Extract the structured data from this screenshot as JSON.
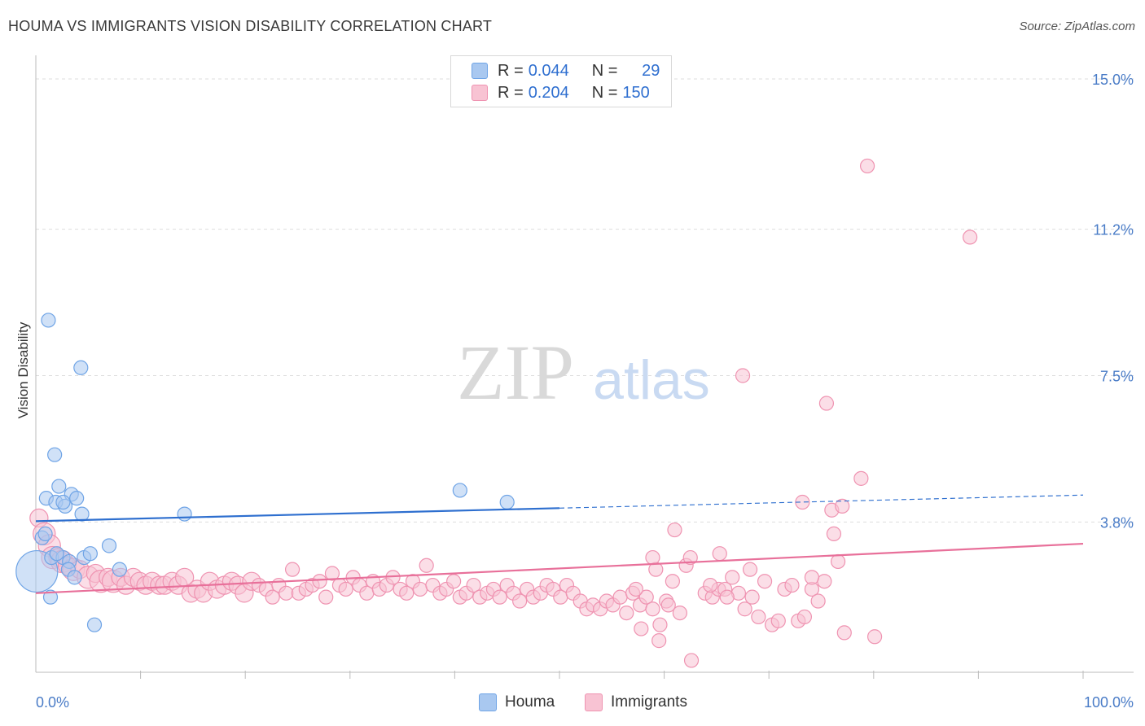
{
  "header": {
    "title": "HOUMA VS IMMIGRANTS VISION DISABILITY CORRELATION CHART",
    "source": "Source: ZipAtlas.com"
  },
  "legend": {
    "rows": [
      {
        "r_label": "R =",
        "r_value": "0.044",
        "n_label": "N =",
        "n_value": "29",
        "color": "#6fa4e6"
      },
      {
        "r_label": "R =",
        "r_value": "0.204",
        "n_label": "N =",
        "n_value": "150",
        "color": "#f2a3bd"
      }
    ]
  },
  "bottom_legend": {
    "houma": "Houma",
    "immigrants": "Immigrants"
  },
  "watermark": {
    "zip": "ZIP",
    "atlas": "atlas"
  },
  "colors": {
    "houma_fill": "#a9c8f0",
    "houma_stroke": "#6fa4e6",
    "houma_line": "#2e6fcf",
    "immigrants_fill": "#f8c3d3",
    "immigrants_stroke": "#ef93b1",
    "immigrants_line": "#e8709a",
    "tick_text": "#4a7cc7",
    "grid": "#dddddd"
  },
  "chart_data": {
    "type": "scatter",
    "title": "HOUMA VS IMMIGRANTS VISION DISABILITY CORRELATION CHART",
    "xlabel": "",
    "ylabel": "Vision Disability",
    "xlim": [
      0,
      100
    ],
    "ylim": [
      0,
      15
    ],
    "x_tick_labels": [
      "0.0%",
      "100.0%"
    ],
    "y_ticks": [
      3.8,
      7.5,
      11.2,
      15.0
    ],
    "y_tick_labels": [
      "3.8%",
      "7.5%",
      "11.2%",
      "15.0%"
    ],
    "grid": true,
    "legend_position": "top-center",
    "series": [
      {
        "name": "Houma",
        "points": [
          [
            0.1,
            2.55,
            3
          ],
          [
            0.6,
            3.4,
            1
          ],
          [
            1.2,
            8.9,
            1
          ],
          [
            1.8,
            5.5,
            1
          ],
          [
            2.2,
            4.7,
            1
          ],
          [
            1.0,
            4.4,
            1
          ],
          [
            1.9,
            4.3,
            1
          ],
          [
            2.8,
            4.2,
            1
          ],
          [
            3.4,
            4.5,
            1
          ],
          [
            3.9,
            4.4,
            1
          ],
          [
            4.4,
            4.0,
            1
          ],
          [
            2.6,
            4.3,
            1
          ],
          [
            4.3,
            7.7,
            1
          ],
          [
            1.5,
            2.9,
            1
          ],
          [
            2.6,
            2.9,
            1
          ],
          [
            3.2,
            2.8,
            1
          ],
          [
            3.1,
            2.6,
            1
          ],
          [
            3.7,
            2.4,
            1
          ],
          [
            4.6,
            2.9,
            1
          ],
          [
            5.2,
            3.0,
            1
          ],
          [
            7.0,
            3.2,
            1
          ],
          [
            8.0,
            2.6,
            1
          ],
          [
            1.4,
            1.9,
            1
          ],
          [
            5.6,
            1.2,
            1
          ],
          [
            14.2,
            4.0,
            1
          ],
          [
            40.5,
            4.6,
            1
          ],
          [
            45.0,
            4.3,
            1
          ],
          [
            0.9,
            3.5,
            1
          ],
          [
            2.0,
            3.0,
            1
          ]
        ],
        "trend": {
          "x": [
            0,
            50
          ],
          "y": [
            3.82,
            4.15
          ],
          "dashed_extension": {
            "x": [
              50,
              100
            ],
            "y": [
              4.15,
              4.48
            ]
          }
        }
      },
      {
        "name": "Immigrants",
        "points": [
          [
            0.3,
            3.9,
            1.3
          ],
          [
            0.8,
            3.5,
            1.6
          ],
          [
            1.3,
            3.2,
            1.6
          ],
          [
            1.6,
            2.9,
            1.6
          ],
          [
            2.1,
            2.9,
            1.3
          ],
          [
            2.5,
            2.8,
            1.6
          ],
          [
            3.0,
            2.7,
            1.3
          ],
          [
            3.6,
            2.6,
            1.6
          ],
          [
            4.2,
            2.6,
            1.3
          ],
          [
            5.0,
            2.4,
            1.6
          ],
          [
            5.7,
            2.5,
            1.3
          ],
          [
            6.2,
            2.3,
            1.6
          ],
          [
            6.9,
            2.4,
            1.3
          ],
          [
            7.4,
            2.3,
            1.6
          ],
          [
            8.1,
            2.4,
            1.3
          ],
          [
            8.6,
            2.2,
            1.3
          ],
          [
            9.3,
            2.4,
            1.3
          ],
          [
            9.9,
            2.3,
            1.3
          ],
          [
            10.5,
            2.2,
            1.3
          ],
          [
            11.1,
            2.3,
            1.3
          ],
          [
            11.8,
            2.2,
            1.3
          ],
          [
            12.3,
            2.2,
            1.3
          ],
          [
            13.0,
            2.3,
            1.3
          ],
          [
            13.6,
            2.2,
            1.3
          ],
          [
            14.2,
            2.4,
            1.3
          ],
          [
            14.8,
            2.0,
            1.3
          ],
          [
            15.4,
            2.1,
            1.3
          ],
          [
            16.0,
            2.0,
            1.3
          ],
          [
            16.6,
            2.3,
            1.3
          ],
          [
            17.3,
            2.1,
            1.3
          ],
          [
            18.0,
            2.2,
            1.3
          ],
          [
            18.7,
            2.3,
            1.3
          ],
          [
            19.3,
            2.2,
            1.3
          ],
          [
            19.9,
            2.0,
            1.3
          ],
          [
            20.6,
            2.3,
            1.3
          ],
          [
            21.3,
            2.2,
            1.0
          ],
          [
            22.0,
            2.1,
            1.0
          ],
          [
            22.6,
            1.9,
            1.0
          ],
          [
            23.2,
            2.2,
            1.0
          ],
          [
            23.9,
            2.0,
            1.0
          ],
          [
            24.5,
            2.6,
            1.0
          ],
          [
            25.1,
            2.0,
            1.0
          ],
          [
            25.8,
            2.1,
            1.0
          ],
          [
            26.4,
            2.2,
            1.0
          ],
          [
            27.1,
            2.3,
            1.0
          ],
          [
            27.7,
            1.9,
            1.0
          ],
          [
            28.3,
            2.5,
            1.0
          ],
          [
            29.0,
            2.2,
            1.0
          ],
          [
            29.6,
            2.1,
            1.0
          ],
          [
            30.3,
            2.4,
            1.0
          ],
          [
            30.9,
            2.2,
            1.0
          ],
          [
            31.6,
            2.0,
            1.0
          ],
          [
            32.2,
            2.3,
            1.0
          ],
          [
            32.8,
            2.1,
            1.0
          ],
          [
            33.5,
            2.2,
            1.0
          ],
          [
            34.1,
            2.4,
            1.0
          ],
          [
            34.8,
            2.1,
            1.0
          ],
          [
            35.4,
            2.0,
            1.0
          ],
          [
            36.0,
            2.3,
            1.0
          ],
          [
            36.7,
            2.1,
            1.0
          ],
          [
            37.3,
            2.7,
            1.0
          ],
          [
            37.9,
            2.2,
            1.0
          ],
          [
            38.6,
            2.0,
            1.0
          ],
          [
            39.2,
            2.1,
            1.0
          ],
          [
            39.9,
            2.3,
            1.0
          ],
          [
            40.5,
            1.9,
            1.0
          ],
          [
            41.1,
            2.0,
            1.0
          ],
          [
            41.8,
            2.2,
            1.0
          ],
          [
            42.4,
            1.9,
            1.0
          ],
          [
            43.1,
            2.0,
            1.0
          ],
          [
            43.7,
            2.1,
            1.0
          ],
          [
            44.3,
            1.9,
            1.0
          ],
          [
            45.0,
            2.2,
            1.0
          ],
          [
            45.6,
            2.0,
            1.0
          ],
          [
            46.2,
            1.8,
            1.0
          ],
          [
            46.9,
            2.1,
            1.0
          ],
          [
            47.5,
            1.9,
            1.0
          ],
          [
            48.2,
            2.0,
            1.0
          ],
          [
            48.8,
            2.2,
            1.0
          ],
          [
            49.4,
            2.1,
            1.0
          ],
          [
            50.1,
            1.9,
            1.0
          ],
          [
            50.7,
            2.2,
            1.0
          ],
          [
            51.3,
            2.0,
            1.0
          ],
          [
            52.0,
            1.8,
            1.0
          ],
          [
            52.6,
            1.6,
            1.0
          ],
          [
            53.2,
            1.7,
            1.0
          ],
          [
            53.9,
            1.6,
            1.0
          ],
          [
            54.5,
            1.8,
            1.0
          ],
          [
            55.1,
            1.7,
            1.0
          ],
          [
            55.8,
            1.9,
            1.0
          ],
          [
            56.4,
            1.5,
            1.0
          ],
          [
            57.0,
            2.0,
            1.0
          ],
          [
            57.7,
            1.7,
            1.0
          ],
          [
            58.3,
            1.9,
            1.0
          ],
          [
            58.9,
            1.6,
            1.0
          ],
          [
            59.6,
            1.2,
            1.0
          ],
          [
            60.2,
            1.8,
            1.0
          ],
          [
            60.8,
            2.3,
            1.0
          ],
          [
            61.5,
            1.5,
            1.0
          ],
          [
            62.1,
            2.7,
            1.0
          ],
          [
            57.8,
            1.1,
            1.0
          ],
          [
            59.5,
            0.8,
            1.0
          ],
          [
            62.6,
            0.3,
            1.0
          ],
          [
            63.9,
            2.0,
            1.0
          ],
          [
            64.6,
            1.9,
            1.0
          ],
          [
            65.2,
            2.1,
            1.0
          ],
          [
            65.8,
            2.1,
            1.0
          ],
          [
            66.5,
            2.4,
            1.0
          ],
          [
            67.1,
            2.0,
            1.0
          ],
          [
            67.7,
            1.6,
            1.0
          ],
          [
            68.4,
            1.9,
            1.0
          ],
          [
            69.0,
            1.4,
            1.0
          ],
          [
            69.6,
            2.3,
            1.0
          ],
          [
            70.3,
            1.2,
            1.0
          ],
          [
            70.9,
            1.3,
            1.0
          ],
          [
            71.5,
            2.1,
            1.0
          ],
          [
            72.2,
            2.2,
            1.0
          ],
          [
            72.8,
            1.3,
            1.0
          ],
          [
            73.4,
            1.4,
            1.0
          ],
          [
            74.1,
            2.1,
            1.0
          ],
          [
            74.7,
            1.8,
            1.0
          ],
          [
            75.3,
            2.3,
            1.0
          ],
          [
            76.0,
            4.1,
            1.0
          ],
          [
            76.6,
            2.8,
            1.0
          ],
          [
            77.2,
            1.0,
            1.0
          ],
          [
            73.2,
            4.3,
            1.0
          ],
          [
            74.1,
            2.4,
            1.0
          ],
          [
            76.2,
            3.5,
            1.0
          ],
          [
            77.0,
            4.2,
            1.0
          ],
          [
            75.5,
            6.8,
            1.0
          ],
          [
            78.8,
            4.9,
            1.0
          ],
          [
            79.4,
            12.8,
            1.0
          ],
          [
            89.2,
            11.0,
            1.0
          ],
          [
            80.1,
            0.9,
            1.0
          ],
          [
            65.3,
            3.0,
            1.0
          ],
          [
            59.2,
            2.6,
            1.0
          ],
          [
            61.0,
            3.6,
            1.0
          ],
          [
            62.5,
            2.9,
            1.0
          ],
          [
            64.4,
            2.2,
            1.0
          ],
          [
            66.0,
            1.9,
            1.0
          ],
          [
            67.5,
            7.5,
            1.0
          ],
          [
            68.2,
            2.6,
            1.0
          ],
          [
            57.3,
            2.1,
            1.0
          ],
          [
            58.9,
            2.9,
            1.0
          ],
          [
            60.4,
            1.7,
            1.0
          ]
        ],
        "trend": {
          "x": [
            0,
            100
          ],
          "y": [
            2.0,
            3.25
          ]
        }
      }
    ]
  }
}
